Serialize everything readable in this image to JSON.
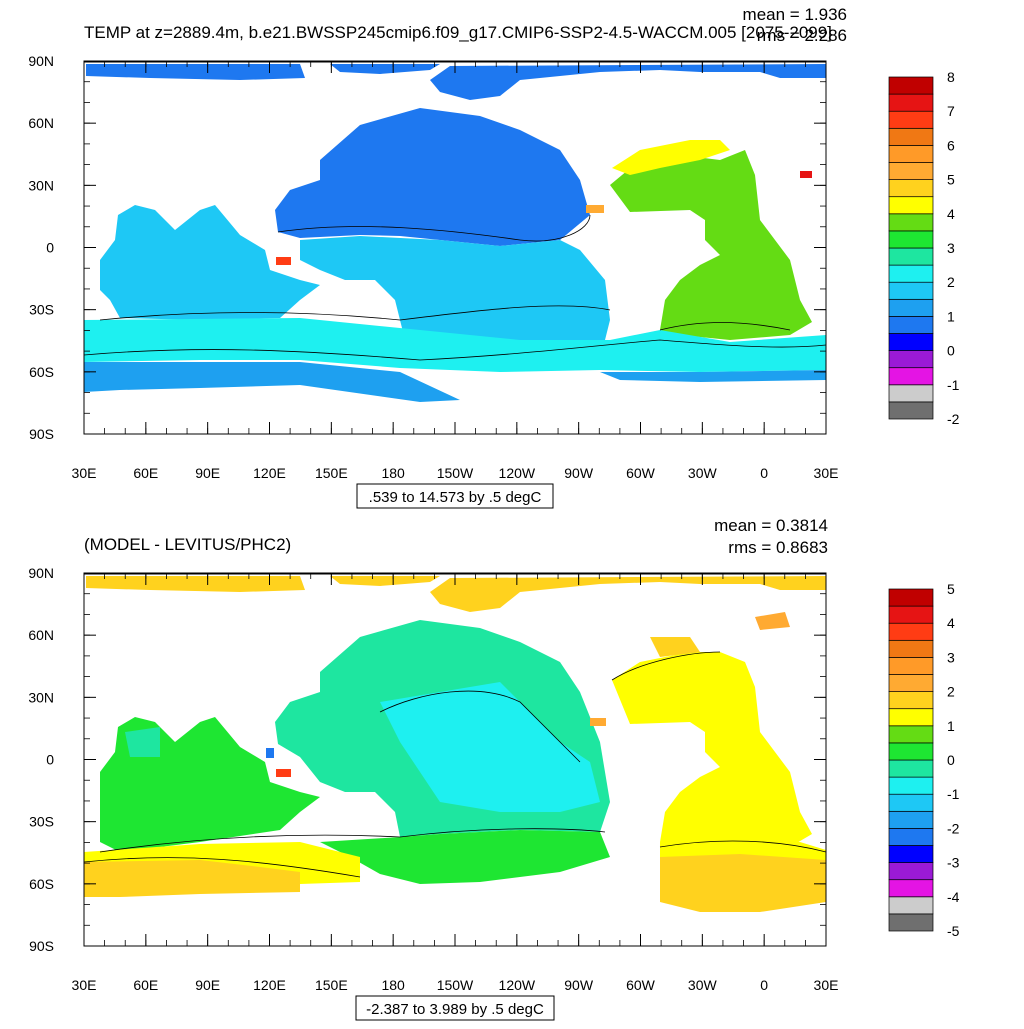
{
  "colors": {
    "land": "#ffffff",
    "contour": "#000000",
    "frame": "#000000"
  },
  "lat_labels": [
    "90N",
    "60N",
    "30N",
    "0",
    "30S",
    "60S",
    "90S"
  ],
  "lon_labels": [
    "30E",
    "60E",
    "90E",
    "120E",
    "150E",
    "180",
    "150W",
    "120W",
    "90W",
    "60W",
    "30W",
    "0",
    "30E"
  ],
  "panels": [
    {
      "id": "top",
      "title": "TEMP at z=2889.4m, b.e21.BWSSP245cmip6.f09_g17.CMIP6-SSP2-4.5-WACCM.005 [2075-2099]",
      "mean_text": "mean = 1.936",
      "rms_text": "rms = 2.286",
      "range_text": ".539 to 14.573 by .5 degC",
      "colorbar": {
        "colors": [
          "#6f6f6f",
          "#cccccc",
          "#e414e4",
          "#9a1ad6",
          "#0000ff",
          "#1e78f0",
          "#1ea0f0",
          "#1ec8f5",
          "#1ef0f0",
          "#1ee6a0",
          "#1ee632",
          "#64dc14",
          "#ffff00",
          "#ffd21e",
          "#ffaa32",
          "#ff9a28",
          "#f07814",
          "#ff3c14",
          "#e61414",
          "#c00000"
        ],
        "labels": [
          "-2",
          "-1",
          "0",
          "1",
          "2",
          "3",
          "4",
          "5",
          "6",
          "7",
          "8"
        ]
      }
    },
    {
      "id": "bottom",
      "title": "(MODEL - LEVITUS/PHC2)",
      "mean_text": "mean = 0.3814",
      "rms_text": "rms = 0.8683",
      "range_text": "-2.387 to 3.989 by .5 degC",
      "colorbar": {
        "colors": [
          "#6f6f6f",
          "#cccccc",
          "#e414e4",
          "#9a1ad6",
          "#0000ff",
          "#1e78f0",
          "#1ea0f0",
          "#1ec8f5",
          "#1ef0f0",
          "#1ee6a0",
          "#1ee632",
          "#64dc14",
          "#ffff00",
          "#ffd21e",
          "#ffaa32",
          "#ff9a28",
          "#f07814",
          "#ff3c14",
          "#e61414",
          "#c00000"
        ],
        "labels": [
          "-5",
          "-4",
          "-3",
          "-2",
          "-1",
          "0",
          "1",
          "2",
          "3",
          "4",
          "5"
        ]
      }
    }
  ]
}
